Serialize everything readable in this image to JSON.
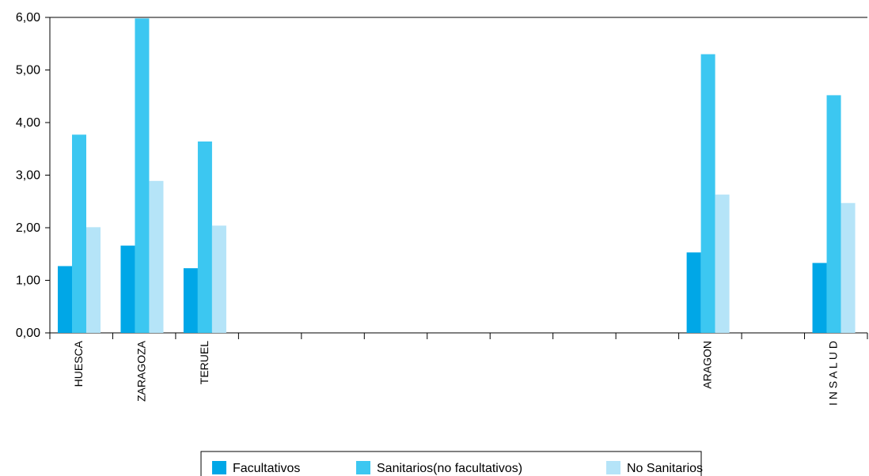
{
  "chart_data": {
    "type": "bar",
    "title": "",
    "xlabel": "",
    "ylabel": "",
    "ylim": [
      0,
      6
    ],
    "ytick_labels": [
      "0,00",
      "1,00",
      "2,00",
      "3,00",
      "4,00",
      "5,00",
      "6,00"
    ],
    "ytick_values": [
      0,
      1,
      2,
      3,
      4,
      5,
      6
    ],
    "categories": [
      "HUESCA",
      "ZARAGOZA",
      "TERUEL",
      "",
      "",
      "",
      "",
      "",
      "",
      "",
      "ARAGON",
      "",
      "I N S A L U D"
    ],
    "series": [
      {
        "name": "Facultativos",
        "color": "#00A7E7",
        "values": [
          1.27,
          1.66,
          1.23,
          null,
          null,
          null,
          null,
          null,
          null,
          null,
          1.53,
          null,
          1.33
        ]
      },
      {
        "name": "Sanitarios(no facultativos)",
        "color": "#3CC7F1",
        "values": [
          3.77,
          5.98,
          3.64,
          null,
          null,
          null,
          null,
          null,
          null,
          null,
          5.3,
          null,
          4.52
        ]
      },
      {
        "name": "No Sanitarios",
        "color": "#B5E4F8",
        "values": [
          2.01,
          2.89,
          2.04,
          null,
          null,
          null,
          null,
          null,
          null,
          null,
          2.63,
          null,
          2.47
        ]
      }
    ],
    "grid": false,
    "legend_position": "bottom",
    "colors": {
      "axis": "#000000",
      "legend_border": "#000000",
      "background": "#ffffff"
    }
  }
}
